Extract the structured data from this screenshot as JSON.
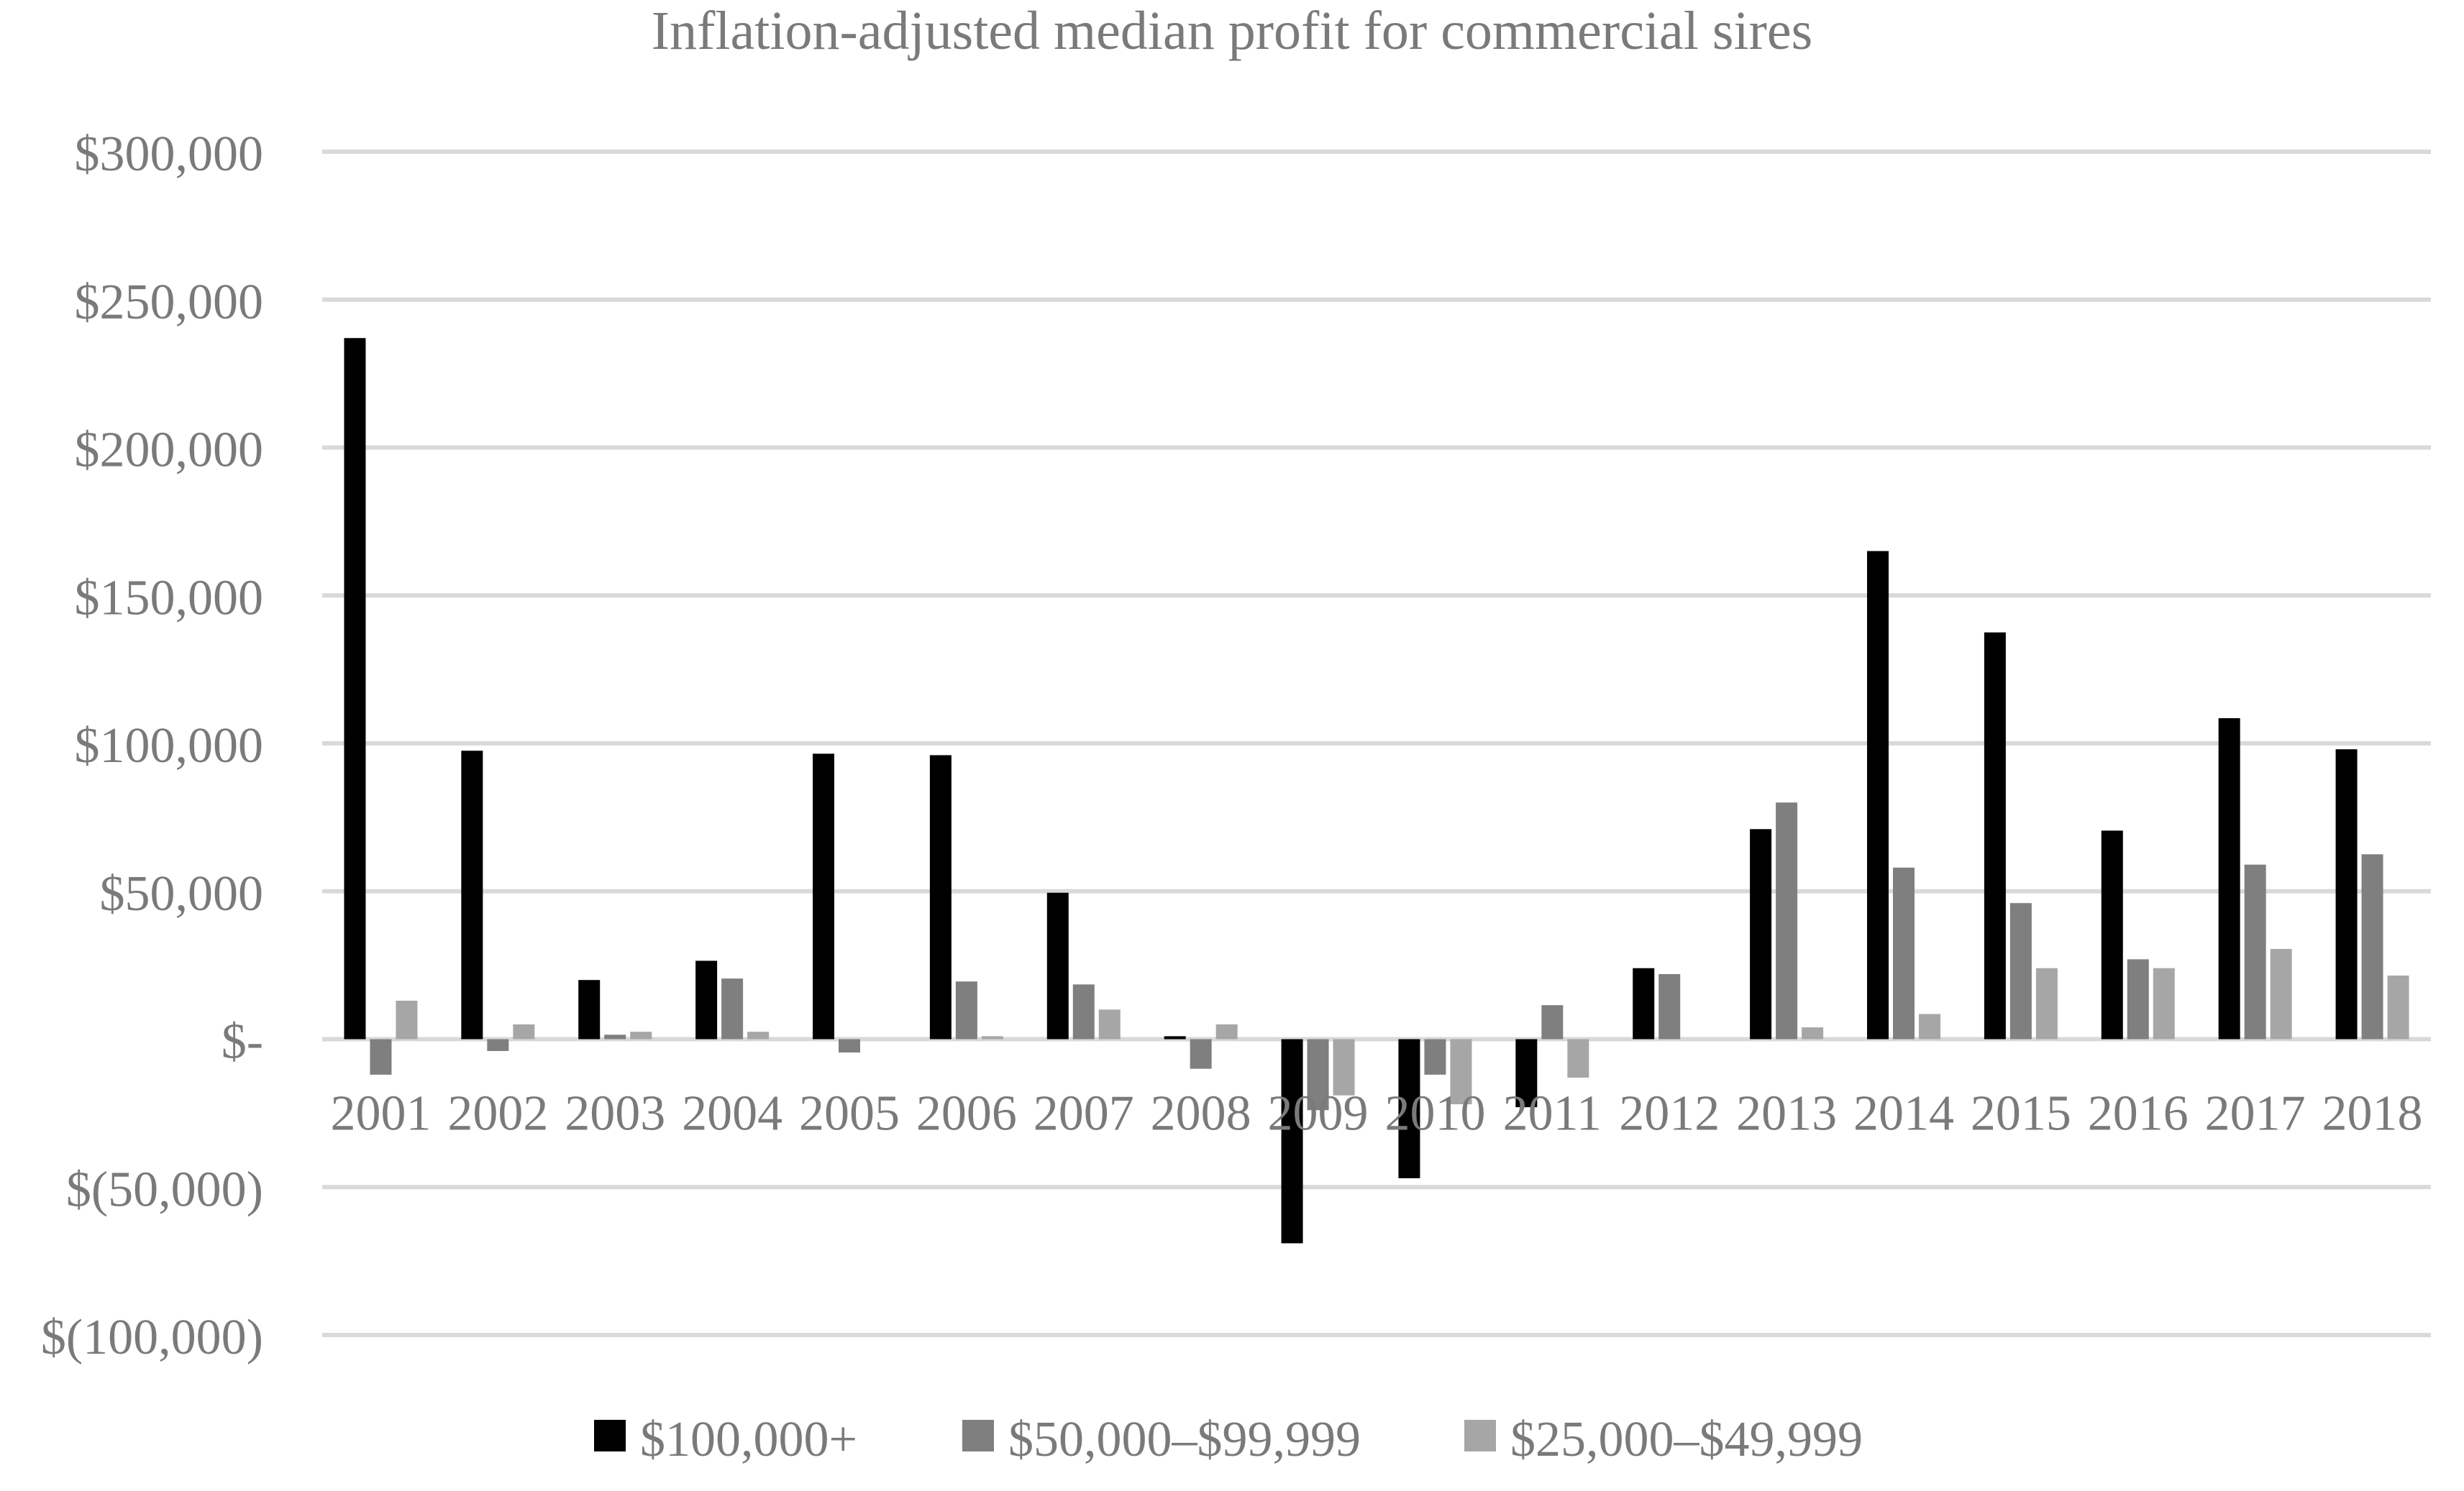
{
  "chart_data": {
    "type": "bar",
    "title": "Inflation-adjusted median profit for commercial sires",
    "xlabel": "",
    "ylabel": "",
    "ylim": [
      -100000,
      300000
    ],
    "y_ticks": [
      300000,
      250000,
      200000,
      150000,
      100000,
      50000,
      0,
      -50000,
      -100000
    ],
    "y_tick_labels": [
      "$300,000",
      "$250,000",
      "$200,000",
      "$150,000",
      "$100,000",
      "$50,000",
      "$-",
      "$(50,000)",
      "$(100,000)"
    ],
    "grid": true,
    "legend_position": "bottom",
    "categories": [
      "2001",
      "2002",
      "2003",
      "2004",
      "2005",
      "2006",
      "2007",
      "2008",
      "2009",
      "2010",
      "2011",
      "2012",
      "2013",
      "2014",
      "2015",
      "2016",
      "2017",
      "2018"
    ],
    "series": [
      {
        "name": "$100,000+",
        "color": "#000000",
        "values": [
          237000,
          97500,
          20000,
          26500,
          96500,
          96000,
          49500,
          1000,
          -69000,
          -47000,
          -23000,
          24000,
          71000,
          165000,
          137500,
          70500,
          108500,
          98000
        ]
      },
      {
        "name": "$50,000–$99,999",
        "color": "#7f7f7f",
        "values": [
          -12000,
          -4000,
          1500,
          20500,
          -4500,
          19500,
          18500,
          -10000,
          -24000,
          -12000,
          11500,
          22000,
          80000,
          58000,
          46000,
          27000,
          59000,
          62500
        ]
      },
      {
        "name": "$25,000–$49,999",
        "color": "#a6a6a6",
        "values": [
          13000,
          5000,
          2500,
          2500,
          0,
          1000,
          10000,
          5000,
          -19000,
          -22000,
          -13000,
          0,
          4000,
          8500,
          24000,
          24000,
          30500,
          21500
        ]
      }
    ]
  }
}
